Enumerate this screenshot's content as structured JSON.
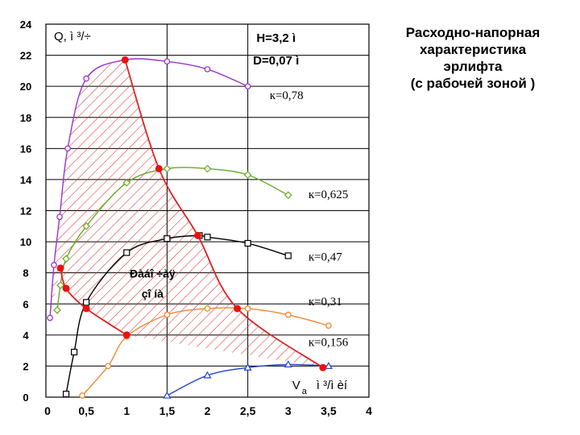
{
  "chart_data": {
    "type": "line",
    "title_lines": [
      "Расходно-напорная",
      "характеристика",
      "эрлифта",
      "(с рабочей зоной )"
    ],
    "ylabel": "Q, ì ³/÷",
    "xlabel": "V",
    "xlabel_sub": "a",
    "xlabel_unit": "ì ³/ì èí",
    "param_h": "H=3,2 ì",
    "param_d": "D=0,07 ì",
    "zone_label_1": "Ðàáî ÷àÿ",
    "zone_label_2": "çî íà",
    "xlim": [
      0,
      4
    ],
    "ylim": [
      0,
      24
    ],
    "x_ticks": [
      0,
      0.5,
      1,
      1.5,
      2,
      2.5,
      3,
      3.5,
      4
    ],
    "x_tick_labels": [
      "0",
      "0,5",
      "1",
      "1,5",
      "2",
      "2,5",
      "3",
      "3,5",
      "4"
    ],
    "y_ticks": [
      0,
      2,
      4,
      6,
      8,
      10,
      12,
      14,
      16,
      18,
      20,
      22,
      24
    ],
    "y_tick_labels": [
      "0",
      "2",
      "4",
      "6",
      "8",
      "10",
      "12",
      "14",
      "16",
      "18",
      "20",
      "22",
      "24"
    ],
    "series": [
      {
        "name": "к=0,78",
        "color": "#9933cc",
        "marker": "circle",
        "x": [
          0.05,
          0.1,
          0.17,
          0.27,
          0.5,
          0.98,
          1.5,
          2.0,
          2.5
        ],
        "y": [
          5.1,
          8.5,
          11.6,
          16.0,
          20.5,
          21.7,
          21.6,
          21.1,
          20.0
        ]
      },
      {
        "name": "к=0,625",
        "color": "#66aa22",
        "marker": "diamond",
        "x": [
          0.14,
          0.18,
          0.25,
          0.5,
          1.0,
          1.5,
          2.0,
          2.5,
          3.0
        ],
        "y": [
          5.6,
          7.2,
          8.9,
          11.0,
          13.8,
          14.7,
          14.7,
          14.3,
          13.0
        ]
      },
      {
        "name": "к=0,47",
        "color": "#000000",
        "marker": "square",
        "x": [
          0.25,
          0.35,
          0.5,
          1.0,
          1.5,
          1.9,
          2.0,
          2.5,
          3.0
        ],
        "y": [
          0.2,
          2.9,
          6.1,
          9.3,
          10.2,
          10.4,
          10.3,
          9.9,
          9.1
        ]
      },
      {
        "name": "к=0,31",
        "color": "#ee8833",
        "marker": "circle",
        "x": [
          0.45,
          0.77,
          1.0,
          1.5,
          2.0,
          2.5,
          3.0,
          3.5
        ],
        "y": [
          0.1,
          2.0,
          3.9,
          5.3,
          5.7,
          5.7,
          5.3,
          4.6
        ]
      },
      {
        "name": "к=0,156",
        "color": "#2244cc",
        "marker": "triangle",
        "x": [
          1.5,
          2.0,
          2.5,
          3.0,
          3.5
        ],
        "y": [
          0.1,
          1.4,
          1.9,
          2.1,
          2.0
        ]
      }
    ],
    "boundary_points": {
      "x": [
        0.98,
        1.4,
        1.88,
        2.37,
        3.43
      ],
      "y": [
        21.7,
        14.7,
        10.4,
        5.7,
        1.9
      ]
    },
    "left_boundary_points": {
      "x": [
        0.18,
        0.25,
        0.5,
        1.0
      ],
      "y": [
        8.3,
        7.0,
        5.7,
        4.0
      ]
    },
    "work_zone_fill": "#dd3333"
  }
}
